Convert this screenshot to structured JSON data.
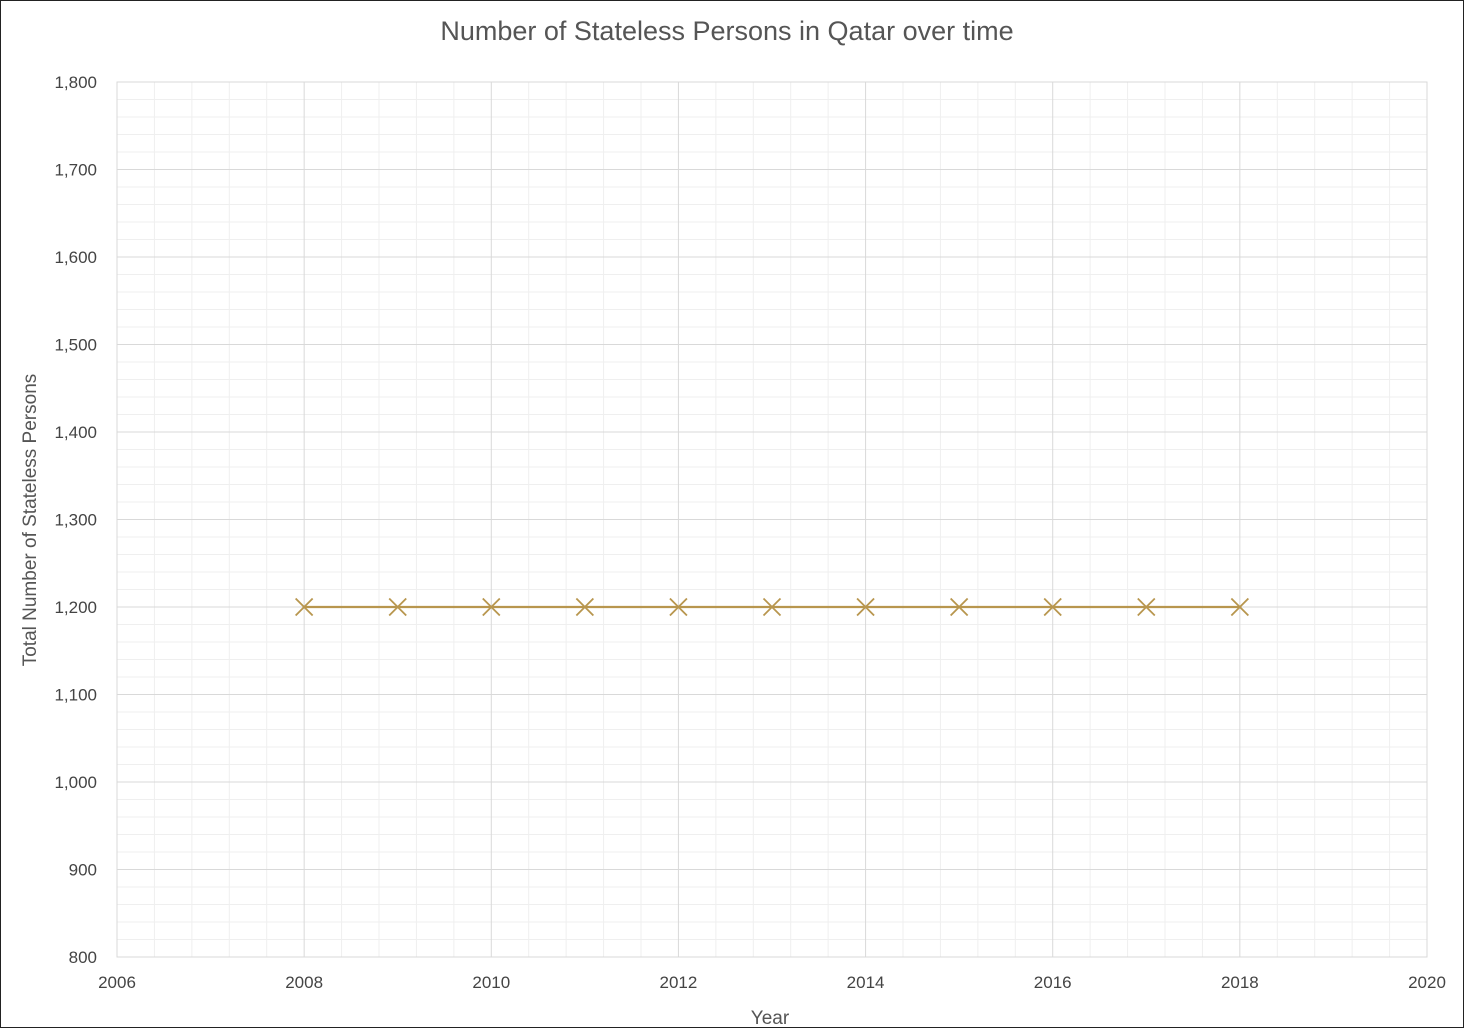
{
  "chart_data": {
    "type": "scatter",
    "title": "Number of Stateless Persons in Qatar over time",
    "xlabel": "Year",
    "ylabel": "Total Number of Stateless Persons",
    "xlim": [
      2006,
      2020
    ],
    "ylim": [
      800,
      1800
    ],
    "x_major_step": 2,
    "y_major_step": 100,
    "x_ticks": [
      "2006",
      "2008",
      "2010",
      "2012",
      "2014",
      "2016",
      "2018",
      "2020"
    ],
    "y_ticks": [
      "800",
      "900",
      "1,000",
      "1,100",
      "1,200",
      "1,300",
      "1,400",
      "1,500",
      "1,600",
      "1,700",
      "1,800"
    ],
    "grid": true,
    "minor_grid": true,
    "legend": "none",
    "marker": "x",
    "series": [
      {
        "color": "#b8964e",
        "x": [
          2008,
          2009,
          2010,
          2011,
          2012,
          2013,
          2014,
          2015,
          2016,
          2017,
          2018
        ],
        "y": [
          1200,
          1200,
          1200,
          1200,
          1200,
          1200,
          1200,
          1200,
          1200,
          1200,
          1200
        ]
      }
    ]
  }
}
